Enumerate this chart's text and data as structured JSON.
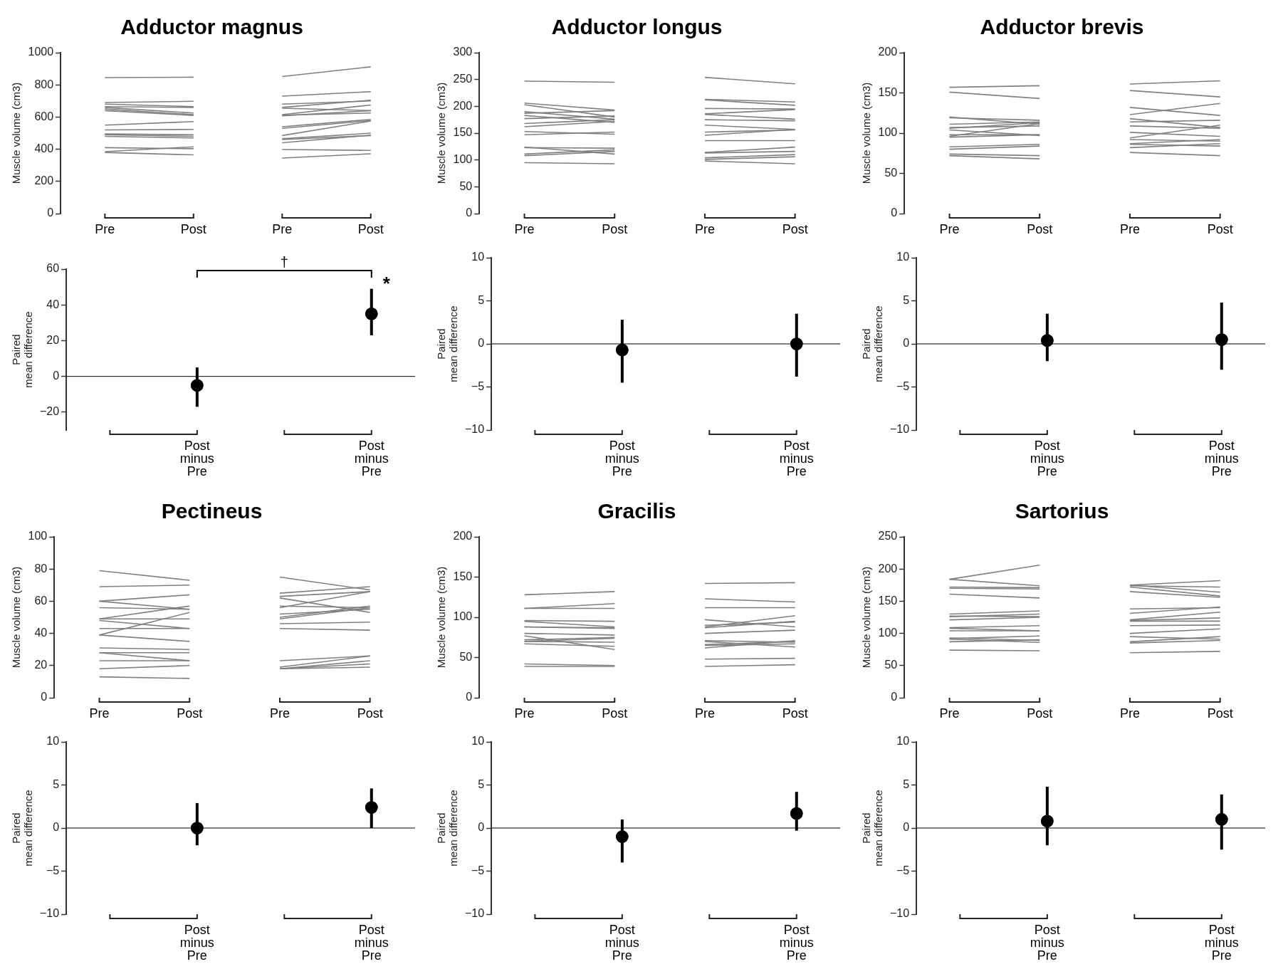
{
  "chart_data": [
    {
      "type": "line",
      "title": "Adductor magnus",
      "ylabel": "Muscle volume (cm3)",
      "categories": [
        "Pre",
        "Post",
        "Pre",
        "Post"
      ],
      "ylim": [
        0,
        1000
      ],
      "yticks": [
        0,
        200,
        400,
        600,
        800,
        1000
      ],
      "grid": false,
      "legend": false,
      "marker": "none",
      "series": [
        {
          "color": "#808080",
          "values": [
            845,
            848,
            null,
            null
          ]
        },
        {
          "color": "#808080",
          "values": [
            690,
            698,
            null,
            null
          ]
        },
        {
          "color": "#808080",
          "values": [
            680,
            665,
            null,
            null
          ]
        },
        {
          "color": "#808080",
          "values": [
            665,
            660,
            null,
            null
          ]
        },
        {
          "color": "#808080",
          "values": [
            660,
            625,
            null,
            null
          ]
        },
        {
          "color": "#808080",
          "values": [
            650,
            615,
            null,
            null
          ]
        },
        {
          "color": "#808080",
          "values": [
            640,
            610,
            null,
            null
          ]
        },
        {
          "color": "#808080",
          "values": [
            550,
            572,
            null,
            null
          ]
        },
        {
          "color": "#808080",
          "values": [
            520,
            523,
            null,
            null
          ]
        },
        {
          "color": "#808080",
          "values": [
            495,
            490,
            null,
            null
          ]
        },
        {
          "color": "#808080",
          "values": [
            490,
            480,
            null,
            null
          ]
        },
        {
          "color": "#808080",
          "values": [
            480,
            470,
            null,
            null
          ]
        },
        {
          "color": "#808080",
          "values": [
            410,
            403,
            null,
            null
          ]
        },
        {
          "color": "#808080",
          "values": [
            385,
            415,
            null,
            null
          ]
        },
        {
          "color": "#808080",
          "values": [
            380,
            365,
            null,
            null
          ]
        },
        {
          "color": "#808080",
          "values": [
            null,
            null,
            852,
            912
          ]
        },
        {
          "color": "#808080",
          "values": [
            null,
            null,
            730,
            758
          ]
        },
        {
          "color": "#808080",
          "values": [
            null,
            null,
            680,
            700
          ]
        },
        {
          "color": "#808080",
          "values": [
            null,
            null,
            660,
            705
          ]
        },
        {
          "color": "#808080",
          "values": [
            null,
            null,
            655,
            640
          ]
        },
        {
          "color": "#808080",
          "values": [
            null,
            null,
            615,
            675
          ]
        },
        {
          "color": "#808080",
          "values": [
            null,
            null,
            612,
            625
          ]
        },
        {
          "color": "#808080",
          "values": [
            null,
            null,
            608,
            640
          ]
        },
        {
          "color": "#808080",
          "values": [
            null,
            null,
            540,
            585
          ]
        },
        {
          "color": "#808080",
          "values": [
            null,
            null,
            530,
            578
          ]
        },
        {
          "color": "#808080",
          "values": [
            null,
            null,
            485,
            575
          ]
        },
        {
          "color": "#808080",
          "values": [
            null,
            null,
            465,
            500
          ]
        },
        {
          "color": "#808080",
          "values": [
            null,
            null,
            460,
            485
          ]
        },
        {
          "color": "#808080",
          "values": [
            null,
            null,
            440,
            488
          ]
        },
        {
          "color": "#808080",
          "values": [
            null,
            null,
            398,
            393
          ]
        },
        {
          "color": "#808080",
          "values": [
            null,
            null,
            345,
            372
          ]
        }
      ]
    },
    {
      "type": "line",
      "title": "Adductor longus",
      "ylabel": "Muscle volume (cm3)",
      "categories": [
        "Pre",
        "Post",
        "Pre",
        "Post"
      ],
      "ylim": [
        0,
        300
      ],
      "yticks": [
        0,
        50,
        100,
        150,
        200,
        250,
        300
      ],
      "grid": false,
      "legend": false,
      "marker": "none",
      "series": [
        {
          "color": "#808080",
          "values": [
            247,
            245,
            null,
            null
          ]
        },
        {
          "color": "#808080",
          "values": [
            206,
            193,
            null,
            null
          ]
        },
        {
          "color": "#808080",
          "values": [
            203,
            180,
            null,
            null
          ]
        },
        {
          "color": "#808080",
          "values": [
            190,
            176,
            null,
            null
          ]
        },
        {
          "color": "#808080",
          "values": [
            187,
            192,
            null,
            null
          ]
        },
        {
          "color": "#808080",
          "values": [
            183,
            170,
            null,
            null
          ]
        },
        {
          "color": "#808080",
          "values": [
            177,
            182,
            null,
            null
          ]
        },
        {
          "color": "#808080",
          "values": [
            168,
            175,
            null,
            null
          ]
        },
        {
          "color": "#808080",
          "values": [
            162,
            172,
            null,
            null
          ]
        },
        {
          "color": "#808080",
          "values": [
            153,
            148,
            null,
            null
          ]
        },
        {
          "color": "#808080",
          "values": [
            147,
            152,
            null,
            null
          ]
        },
        {
          "color": "#808080",
          "values": [
            124,
            111,
            null,
            null
          ]
        },
        {
          "color": "#808080",
          "values": [
            123,
            122,
            null,
            null
          ]
        },
        {
          "color": "#808080",
          "values": [
            111,
            119,
            null,
            null
          ]
        },
        {
          "color": "#808080",
          "values": [
            108,
            116,
            null,
            null
          ]
        },
        {
          "color": "#808080",
          "values": [
            95,
            93,
            null,
            null
          ]
        },
        {
          "color": "#808080",
          "values": [
            null,
            null,
            254,
            242
          ]
        },
        {
          "color": "#808080",
          "values": [
            null,
            null,
            213,
            208
          ]
        },
        {
          "color": "#808080",
          "values": [
            null,
            null,
            212,
            202
          ]
        },
        {
          "color": "#808080",
          "values": [
            null,
            null,
            196,
            195
          ]
        },
        {
          "color": "#808080",
          "values": [
            null,
            null,
            186,
            194
          ]
        },
        {
          "color": "#808080",
          "values": [
            null,
            null,
            185,
            176
          ]
        },
        {
          "color": "#808080",
          "values": [
            null,
            null,
            175,
            173
          ]
        },
        {
          "color": "#808080",
          "values": [
            null,
            null,
            165,
            157
          ]
        },
        {
          "color": "#808080",
          "values": [
            null,
            null,
            152,
            156
          ]
        },
        {
          "color": "#808080",
          "values": [
            null,
            null,
            146,
            157
          ]
        },
        {
          "color": "#808080",
          "values": [
            null,
            null,
            136,
            136
          ]
        },
        {
          "color": "#808080",
          "values": [
            null,
            null,
            114,
            124
          ]
        },
        {
          "color": "#808080",
          "values": [
            null,
            null,
            113,
            116
          ]
        },
        {
          "color": "#808080",
          "values": [
            null,
            null,
            104,
            110
          ]
        },
        {
          "color": "#808080",
          "values": [
            null,
            null,
            101,
            106
          ]
        },
        {
          "color": "#808080",
          "values": [
            null,
            null,
            98,
            93
          ]
        }
      ]
    },
    {
      "type": "line",
      "title": "Adductor brevis",
      "ylabel": "Muscle volume (cm3)",
      "categories": [
        "Pre",
        "Post",
        "Pre",
        "Post"
      ],
      "ylim": [
        0,
        200
      ],
      "yticks": [
        0,
        50,
        100,
        150,
        200
      ],
      "grid": false,
      "legend": false,
      "marker": "none",
      "series": [
        {
          "color": "#808080",
          "values": [
            157,
            159,
            null,
            null
          ]
        },
        {
          "color": "#808080",
          "values": [
            151,
            143,
            null,
            null
          ]
        },
        {
          "color": "#808080",
          "values": [
            120,
            111,
            null,
            null
          ]
        },
        {
          "color": "#808080",
          "values": [
            119,
            116,
            null,
            null
          ]
        },
        {
          "color": "#808080",
          "values": [
            111,
            114,
            null,
            null
          ]
        },
        {
          "color": "#808080",
          "values": [
            107,
            109,
            null,
            null
          ]
        },
        {
          "color": "#808080",
          "values": [
            106,
            113,
            null,
            null
          ]
        },
        {
          "color": "#808080",
          "values": [
            104,
            97,
            null,
            null
          ]
        },
        {
          "color": "#808080",
          "values": [
            98,
            98,
            null,
            null
          ]
        },
        {
          "color": "#808080",
          "values": [
            96,
            112,
            null,
            null
          ]
        },
        {
          "color": "#808080",
          "values": [
            95,
            98,
            null,
            null
          ]
        },
        {
          "color": "#808080",
          "values": [
            83,
            86,
            null,
            null
          ]
        },
        {
          "color": "#808080",
          "values": [
            80,
            84,
            null,
            null
          ]
        },
        {
          "color": "#808080",
          "values": [
            74,
            72,
            null,
            null
          ]
        },
        {
          "color": "#808080",
          "values": [
            72,
            68,
            null,
            null
          ]
        },
        {
          "color": "#808080",
          "values": [
            null,
            null,
            161,
            165
          ]
        },
        {
          "color": "#808080",
          "values": [
            null,
            null,
            153,
            145
          ]
        },
        {
          "color": "#808080",
          "values": [
            null,
            null,
            132,
            122
          ]
        },
        {
          "color": "#808080",
          "values": [
            null,
            null,
            123,
            137
          ]
        },
        {
          "color": "#808080",
          "values": [
            null,
            null,
            118,
            107
          ]
        },
        {
          "color": "#808080",
          "values": [
            null,
            null,
            114,
            116
          ]
        },
        {
          "color": "#808080",
          "values": [
            null,
            null,
            109,
            106
          ]
        },
        {
          "color": "#808080",
          "values": [
            null,
            null,
            101,
            96
          ]
        },
        {
          "color": "#808080",
          "values": [
            null,
            null,
            94,
            110
          ]
        },
        {
          "color": "#808080",
          "values": [
            null,
            null,
            92,
            90
          ]
        },
        {
          "color": "#808080",
          "values": [
            null,
            null,
            87,
            92
          ]
        },
        {
          "color": "#808080",
          "values": [
            null,
            null,
            86,
            84
          ]
        },
        {
          "color": "#808080",
          "values": [
            null,
            null,
            82,
            87
          ]
        },
        {
          "color": "#808080",
          "values": [
            null,
            null,
            76,
            72
          ]
        }
      ]
    },
    {
      "type": "scatter",
      "ylabel": "Paired mean difference",
      "categories": [
        null,
        "Post minus Pre",
        null,
        "Post minus Pre"
      ],
      "values": [
        null,
        -5,
        null,
        35
      ],
      "errors": [
        null,
        [
          -17,
          5
        ],
        null,
        [
          23,
          49
        ]
      ],
      "color": "#000000",
      "ylim": [
        -30,
        60
      ],
      "yticks": [
        -20,
        0,
        20,
        40,
        60
      ],
      "grid": false,
      "legend": false,
      "marker": "circle",
      "ref_lines": [
        {
          "axis": "y",
          "value": 0,
          "color": "#000000"
        }
      ],
      "annotations": [
        "†",
        "*"
      ]
    },
    {
      "type": "scatter",
      "ylabel": "Paired mean difference",
      "categories": [
        null,
        "Post minus Pre",
        null,
        "Post minus Pre"
      ],
      "values": [
        null,
        -0.7,
        null,
        0
      ],
      "errors": [
        null,
        [
          -4.5,
          2.8
        ],
        null,
        [
          -3.8,
          3.5
        ]
      ],
      "color": "#000000",
      "ylim": [
        -10,
        10
      ],
      "yticks": [
        -10,
        -5,
        0,
        5,
        10
      ],
      "grid": false,
      "legend": false,
      "marker": "circle",
      "ref_lines": [
        {
          "axis": "y",
          "value": 0,
          "color": "#000000"
        }
      ]
    },
    {
      "type": "scatter",
      "ylabel": "Paired mean difference",
      "categories": [
        null,
        "Post minus Pre",
        null,
        "Post minus Pre"
      ],
      "values": [
        null,
        0.4,
        null,
        0.5
      ],
      "errors": [
        null,
        [
          -2,
          3.5
        ],
        null,
        [
          -3,
          4.8
        ]
      ],
      "color": "#000000",
      "ylim": [
        -10,
        10
      ],
      "yticks": [
        -10,
        -5,
        0,
        5,
        10
      ],
      "grid": false,
      "legend": false,
      "marker": "circle",
      "ref_lines": [
        {
          "axis": "y",
          "value": 0,
          "color": "#000000"
        }
      ]
    },
    {
      "type": "line",
      "title": "Pectineus",
      "ylabel": "Muscle volume (cm3)",
      "categories": [
        "Pre",
        "Post",
        "Pre",
        "Post"
      ],
      "ylim": [
        0,
        100
      ],
      "yticks": [
        0,
        20,
        40,
        60,
        80,
        100
      ],
      "grid": false,
      "legend": false,
      "marker": "none",
      "series": [
        {
          "color": "#808080",
          "values": [
            79,
            73,
            null,
            null
          ]
        },
        {
          "color": "#808080",
          "values": [
            69,
            70,
            null,
            null
          ]
        },
        {
          "color": "#808080",
          "values": [
            60,
            64,
            null,
            null
          ]
        },
        {
          "color": "#808080",
          "values": [
            60,
            55,
            null,
            null
          ]
        },
        {
          "color": "#808080",
          "values": [
            56,
            55,
            null,
            null
          ]
        },
        {
          "color": "#808080",
          "values": [
            49,
            57,
            null,
            null
          ]
        },
        {
          "color": "#808080",
          "values": [
            49,
            49,
            null,
            null
          ]
        },
        {
          "color": "#808080",
          "values": [
            48,
            43,
            null,
            null
          ]
        },
        {
          "color": "#808080",
          "values": [
            43,
            43,
            null,
            null
          ]
        },
        {
          "color": "#808080",
          "values": [
            39,
            53,
            null,
            null
          ]
        },
        {
          "color": "#808080",
          "values": [
            39,
            35,
            null,
            null
          ]
        },
        {
          "color": "#808080",
          "values": [
            31,
            30,
            null,
            null
          ]
        },
        {
          "color": "#808080",
          "values": [
            28,
            28,
            null,
            null
          ]
        },
        {
          "color": "#808080",
          "values": [
            28,
            23,
            null,
            null
          ]
        },
        {
          "color": "#808080",
          "values": [
            23,
            23,
            null,
            null
          ]
        },
        {
          "color": "#808080",
          "values": [
            18,
            20,
            null,
            null
          ]
        },
        {
          "color": "#808080",
          "values": [
            13,
            12,
            null,
            null
          ]
        },
        {
          "color": "#808080",
          "values": [
            null,
            null,
            75,
            67
          ]
        },
        {
          "color": "#808080",
          "values": [
            null,
            null,
            65,
            69
          ]
        },
        {
          "color": "#808080",
          "values": [
            null,
            null,
            63,
            66
          ]
        },
        {
          "color": "#808080",
          "values": [
            null,
            null,
            62,
            53
          ]
        },
        {
          "color": "#808080",
          "values": [
            null,
            null,
            57,
            56
          ]
        },
        {
          "color": "#808080",
          "values": [
            null,
            null,
            56,
            66
          ]
        },
        {
          "color": "#808080",
          "values": [
            null,
            null,
            52,
            55
          ]
        },
        {
          "color": "#808080",
          "values": [
            null,
            null,
            50,
            57
          ]
        },
        {
          "color": "#808080",
          "values": [
            null,
            null,
            49,
            56
          ]
        },
        {
          "color": "#808080",
          "values": [
            null,
            null,
            46,
            47
          ]
        },
        {
          "color": "#808080",
          "values": [
            null,
            null,
            43,
            42
          ]
        },
        {
          "color": "#808080",
          "values": [
            null,
            null,
            23,
            26
          ]
        },
        {
          "color": "#808080",
          "values": [
            null,
            null,
            19,
            26
          ]
        },
        {
          "color": "#808080",
          "values": [
            null,
            null,
            18,
            23
          ]
        },
        {
          "color": "#808080",
          "values": [
            null,
            null,
            18,
            21
          ]
        },
        {
          "color": "#808080",
          "values": [
            null,
            null,
            18,
            19
          ]
        }
      ]
    },
    {
      "type": "line",
      "title": "Gracilis",
      "ylabel": "Muscle volume (cm3)",
      "categories": [
        "Pre",
        "Post",
        "Pre",
        "Post"
      ],
      "ylim": [
        0,
        200
      ],
      "yticks": [
        0,
        50,
        100,
        150,
        200
      ],
      "grid": false,
      "legend": false,
      "marker": "none",
      "series": [
        {
          "color": "#808080",
          "values": [
            128,
            132,
            null,
            null
          ]
        },
        {
          "color": "#808080",
          "values": [
            111,
            117,
            null,
            null
          ]
        },
        {
          "color": "#808080",
          "values": [
            111,
            111,
            null,
            null
          ]
        },
        {
          "color": "#808080",
          "values": [
            96,
            95,
            null,
            null
          ]
        },
        {
          "color": "#808080",
          "values": [
            95,
            88,
            null,
            null
          ]
        },
        {
          "color": "#808080",
          "values": [
            88,
            87,
            null,
            null
          ]
        },
        {
          "color": "#808080",
          "values": [
            88,
            86,
            null,
            null
          ]
        },
        {
          "color": "#808080",
          "values": [
            80,
            78,
            null,
            null
          ]
        },
        {
          "color": "#808080",
          "values": [
            77,
            60,
            null,
            null
          ]
        },
        {
          "color": "#808080",
          "values": [
            72,
            75,
            null,
            null
          ]
        },
        {
          "color": "#808080",
          "values": [
            70,
            69,
            null,
            null
          ]
        },
        {
          "color": "#808080",
          "values": [
            70,
            74,
            null,
            null
          ]
        },
        {
          "color": "#808080",
          "values": [
            67,
            64,
            null,
            null
          ]
        },
        {
          "color": "#808080",
          "values": [
            42,
            40,
            null,
            null
          ]
        },
        {
          "color": "#808080",
          "values": [
            39,
            39,
            null,
            null
          ]
        },
        {
          "color": "#808080",
          "values": [
            null,
            null,
            142,
            143
          ]
        },
        {
          "color": "#808080",
          "values": [
            null,
            null,
            123,
            119
          ]
        },
        {
          "color": "#808080",
          "values": [
            null,
            null,
            112,
            112
          ]
        },
        {
          "color": "#808080",
          "values": [
            null,
            null,
            97,
            88
          ]
        },
        {
          "color": "#808080",
          "values": [
            null,
            null,
            90,
            94
          ]
        },
        {
          "color": "#808080",
          "values": [
            null,
            null,
            88,
            102
          ]
        },
        {
          "color": "#808080",
          "values": [
            null,
            null,
            87,
            95
          ]
        },
        {
          "color": "#808080",
          "values": [
            null,
            null,
            80,
            84
          ]
        },
        {
          "color": "#808080",
          "values": [
            null,
            null,
            71,
            69
          ]
        },
        {
          "color": "#808080",
          "values": [
            null,
            null,
            70,
            63
          ]
        },
        {
          "color": "#808080",
          "values": [
            null,
            null,
            66,
            70
          ]
        },
        {
          "color": "#808080",
          "values": [
            null,
            null,
            65,
            67
          ]
        },
        {
          "color": "#808080",
          "values": [
            null,
            null,
            62,
            71
          ]
        },
        {
          "color": "#808080",
          "values": [
            null,
            null,
            48,
            49
          ]
        },
        {
          "color": "#808080",
          "values": [
            null,
            null,
            39,
            41
          ]
        }
      ]
    },
    {
      "type": "line",
      "title": "Sartorius",
      "ylabel": "Muscle volume (cm3)",
      "categories": [
        "Pre",
        "Post",
        "Pre",
        "Post"
      ],
      "ylim": [
        0,
        250
      ],
      "yticks": [
        0,
        50,
        100,
        150,
        200,
        250
      ],
      "grid": false,
      "legend": false,
      "marker": "none",
      "series": [
        {
          "color": "#808080",
          "values": [
            184,
            206,
            null,
            null
          ]
        },
        {
          "color": "#808080",
          "values": [
            184,
            174,
            null,
            null
          ]
        },
        {
          "color": "#808080",
          "values": [
            172,
            171,
            null,
            null
          ]
        },
        {
          "color": "#808080",
          "values": [
            170,
            169,
            null,
            null
          ]
        },
        {
          "color": "#808080",
          "values": [
            161,
            155,
            null,
            null
          ]
        },
        {
          "color": "#808080",
          "values": [
            130,
            135,
            null,
            null
          ]
        },
        {
          "color": "#808080",
          "values": [
            127,
            126,
            null,
            null
          ]
        },
        {
          "color": "#808080",
          "values": [
            126,
            130,
            null,
            null
          ]
        },
        {
          "color": "#808080",
          "values": [
            121,
            125,
            null,
            null
          ]
        },
        {
          "color": "#808080",
          "values": [
            109,
            112,
            null,
            null
          ]
        },
        {
          "color": "#808080",
          "values": [
            108,
            104,
            null,
            null
          ]
        },
        {
          "color": "#808080",
          "values": [
            104,
            104,
            null,
            null
          ]
        },
        {
          "color": "#808080",
          "values": [
            93,
            89,
            null,
            null
          ]
        },
        {
          "color": "#808080",
          "values": [
            92,
            96,
            null,
            null
          ]
        },
        {
          "color": "#808080",
          "values": [
            91,
            86,
            null,
            null
          ]
        },
        {
          "color": "#808080",
          "values": [
            87,
            90,
            null,
            null
          ]
        },
        {
          "color": "#808080",
          "values": [
            74,
            73,
            null,
            null
          ]
        },
        {
          "color": "#808080",
          "values": [
            null,
            null,
            175,
            182
          ]
        },
        {
          "color": "#808080",
          "values": [
            null,
            null,
            175,
            164
          ]
        },
        {
          "color": "#808080",
          "values": [
            null,
            null,
            174,
            172
          ]
        },
        {
          "color": "#808080",
          "values": [
            null,
            null,
            172,
            158
          ]
        },
        {
          "color": "#808080",
          "values": [
            null,
            null,
            165,
            156
          ]
        },
        {
          "color": "#808080",
          "values": [
            null,
            null,
            138,
            140
          ]
        },
        {
          "color": "#808080",
          "values": [
            null,
            null,
            131,
            141
          ]
        },
        {
          "color": "#808080",
          "values": [
            null,
            null,
            121,
            133
          ]
        },
        {
          "color": "#808080",
          "values": [
            null,
            null,
            120,
            124
          ]
        },
        {
          "color": "#808080",
          "values": [
            null,
            null,
            119,
            119
          ]
        },
        {
          "color": "#808080",
          "values": [
            null,
            null,
            112,
            113
          ]
        },
        {
          "color": "#808080",
          "values": [
            null,
            null,
            100,
            107
          ]
        },
        {
          "color": "#808080",
          "values": [
            null,
            null,
            95,
            91
          ]
        },
        {
          "color": "#808080",
          "values": [
            null,
            null,
            87,
            95
          ]
        },
        {
          "color": "#808080",
          "values": [
            null,
            null,
            85,
            89
          ]
        },
        {
          "color": "#808080",
          "values": [
            null,
            null,
            70,
            72
          ]
        }
      ]
    },
    {
      "type": "scatter",
      "ylabel": "Paired mean difference",
      "categories": [
        null,
        "Post minus Pre",
        null,
        "Post minus Pre"
      ],
      "values": [
        null,
        0,
        null,
        2.4
      ],
      "errors": [
        null,
        [
          -2,
          2.9
        ],
        null,
        [
          0,
          4.6
        ]
      ],
      "color": "#000000",
      "ylim": [
        -10,
        10
      ],
      "yticks": [
        -10,
        -5,
        0,
        5,
        10
      ],
      "grid": false,
      "legend": false,
      "marker": "circle",
      "ref_lines": [
        {
          "axis": "y",
          "value": 0,
          "color": "#000000"
        }
      ]
    },
    {
      "type": "scatter",
      "ylabel": "Paired mean difference",
      "categories": [
        null,
        "Post minus Pre",
        null,
        "Post minus Pre"
      ],
      "values": [
        null,
        -1,
        null,
        1.7
      ],
      "errors": [
        null,
        [
          -4,
          1
        ],
        null,
        [
          -0.3,
          4.2
        ]
      ],
      "color": "#000000",
      "ylim": [
        -10,
        10
      ],
      "yticks": [
        -10,
        -5,
        0,
        5,
        10
      ],
      "grid": false,
      "legend": false,
      "marker": "circle",
      "ref_lines": [
        {
          "axis": "y",
          "value": 0,
          "color": "#000000"
        }
      ]
    },
    {
      "type": "scatter",
      "ylabel": "Paired mean difference",
      "categories": [
        null,
        "Post minus Pre",
        null,
        "Post minus Pre"
      ],
      "values": [
        null,
        0.8,
        null,
        1
      ],
      "errors": [
        null,
        [
          -2,
          4.8
        ],
        null,
        [
          -2.5,
          3.9
        ]
      ],
      "color": "#000000",
      "ylim": [
        -10,
        10
      ],
      "yticks": [
        -10,
        -5,
        0,
        5,
        10
      ],
      "grid": false,
      "legend": false,
      "marker": "circle",
      "ref_lines": [
        {
          "axis": "y",
          "value": 0,
          "color": "#000000"
        }
      ]
    }
  ]
}
